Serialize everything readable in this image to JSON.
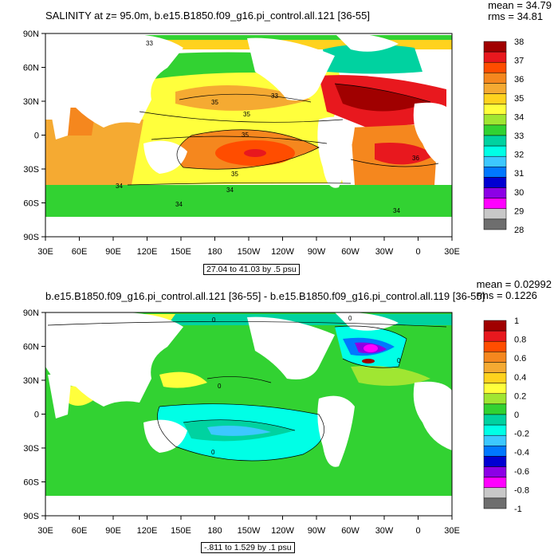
{
  "panels": [
    {
      "title": "SALINITY at z=  95.0m, b.e15.B1850.f09_g16.pi_control.all.121 [36-55]",
      "stats": {
        "mean": "mean = 34.79",
        "rms": "rms = 34.81"
      },
      "range_label": "27.04 to 41.03 by .5 psu",
      "colorbar": {
        "labels": [
          "38",
          "37",
          "36",
          "35",
          "34",
          "33",
          "32",
          "31",
          "30",
          "29",
          "28"
        ],
        "colors": [
          "#a00000",
          "#e8181e",
          "#ff4d00",
          "#f5871e",
          "#f5aa32",
          "#ffd21e",
          "#ffff3c",
          "#a0e632",
          "#32d232",
          "#00d2a0",
          "#00ffe6",
          "#3cc8ff",
          "#0078ff",
          "#0000d2",
          "#8c00e6",
          "#ff00ff",
          "#c8c8c8",
          "#6e6e6e"
        ]
      },
      "contour_labels": [
        "33",
        "33",
        "35",
        "35",
        "35",
        "36",
        "35",
        "34",
        "34",
        "34",
        "34"
      ]
    },
    {
      "title": "b.e15.B1850.f09_g16.pi_control.all.121 [36-55] - b.e15.B1850.f09_g16.pi_control.all.119 [36-55]",
      "stats": {
        "mean": "mean = 0.02992",
        "rms": "rms = 0.1226"
      },
      "range_label": "-.811 to 1.529 by .1 psu",
      "colorbar": {
        "labels": [
          "1",
          "0.8",
          "0.6",
          "0.4",
          "0.2",
          "0",
          "-0.2",
          "-0.4",
          "-0.6",
          "-0.8",
          "-1"
        ],
        "colors": [
          "#a00000",
          "#e8181e",
          "#ff4d00",
          "#f5871e",
          "#f5aa32",
          "#ffd21e",
          "#ffff3c",
          "#a0e632",
          "#32d232",
          "#00d2a0",
          "#00ffe6",
          "#3cc8ff",
          "#0078ff",
          "#0000d2",
          "#8c00e6",
          "#ff00ff",
          "#c8c8c8",
          "#6e6e6e"
        ]
      },
      "contour_labels": [
        "0",
        "0",
        "0",
        "0",
        "0"
      ]
    }
  ],
  "axes": {
    "lat_ticks": [
      "90N",
      "60N",
      "30N",
      "0",
      "30S",
      "60S",
      "90S"
    ],
    "lon_ticks": [
      "30E",
      "60E",
      "90E",
      "120E",
      "150E",
      "180",
      "150W",
      "120W",
      "90W",
      "60W",
      "30W",
      "0",
      "30E"
    ]
  }
}
